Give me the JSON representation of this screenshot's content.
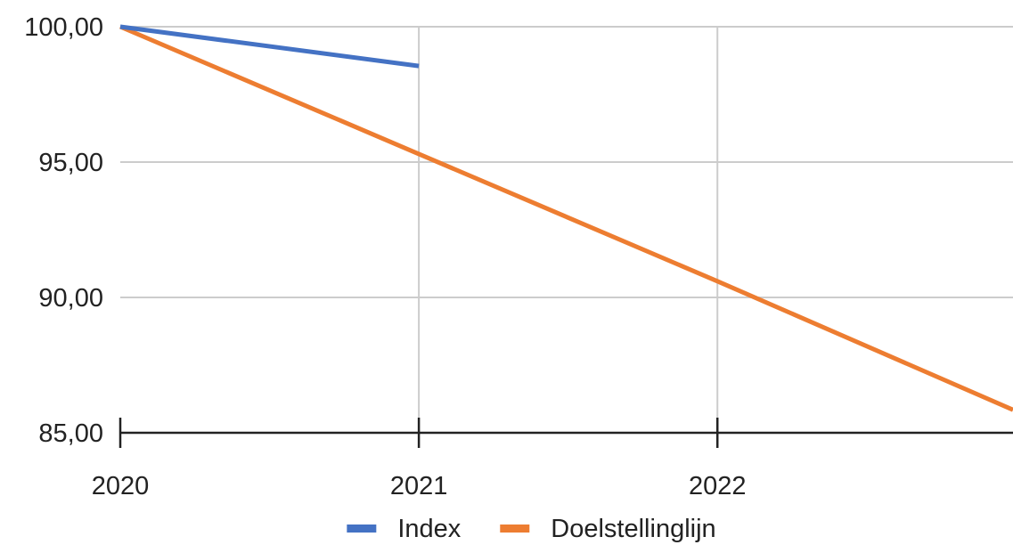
{
  "chart_data": {
    "type": "line",
    "title": "",
    "xlabel": "",
    "ylabel": "",
    "x_ticks": [
      "2020",
      "2021",
      "2022"
    ],
    "y_ticks": [
      "100,00",
      "95,00",
      "90,00",
      "85,00"
    ],
    "xlim": [
      2020,
      2022.99
    ],
    "ylim": [
      85,
      100
    ],
    "grid": true,
    "legend_position": "bottom",
    "series": [
      {
        "name": "Index",
        "color": "#4472c4",
        "x": [
          2020,
          2021
        ],
        "y": [
          100,
          98.55
        ]
      },
      {
        "name": "Doelstellinglijn",
        "color": "#ed7d31",
        "x": [
          2020,
          2021,
          2022,
          2022.99
        ],
        "y": [
          100,
          95.3,
          90.6,
          85.85
        ]
      }
    ]
  }
}
